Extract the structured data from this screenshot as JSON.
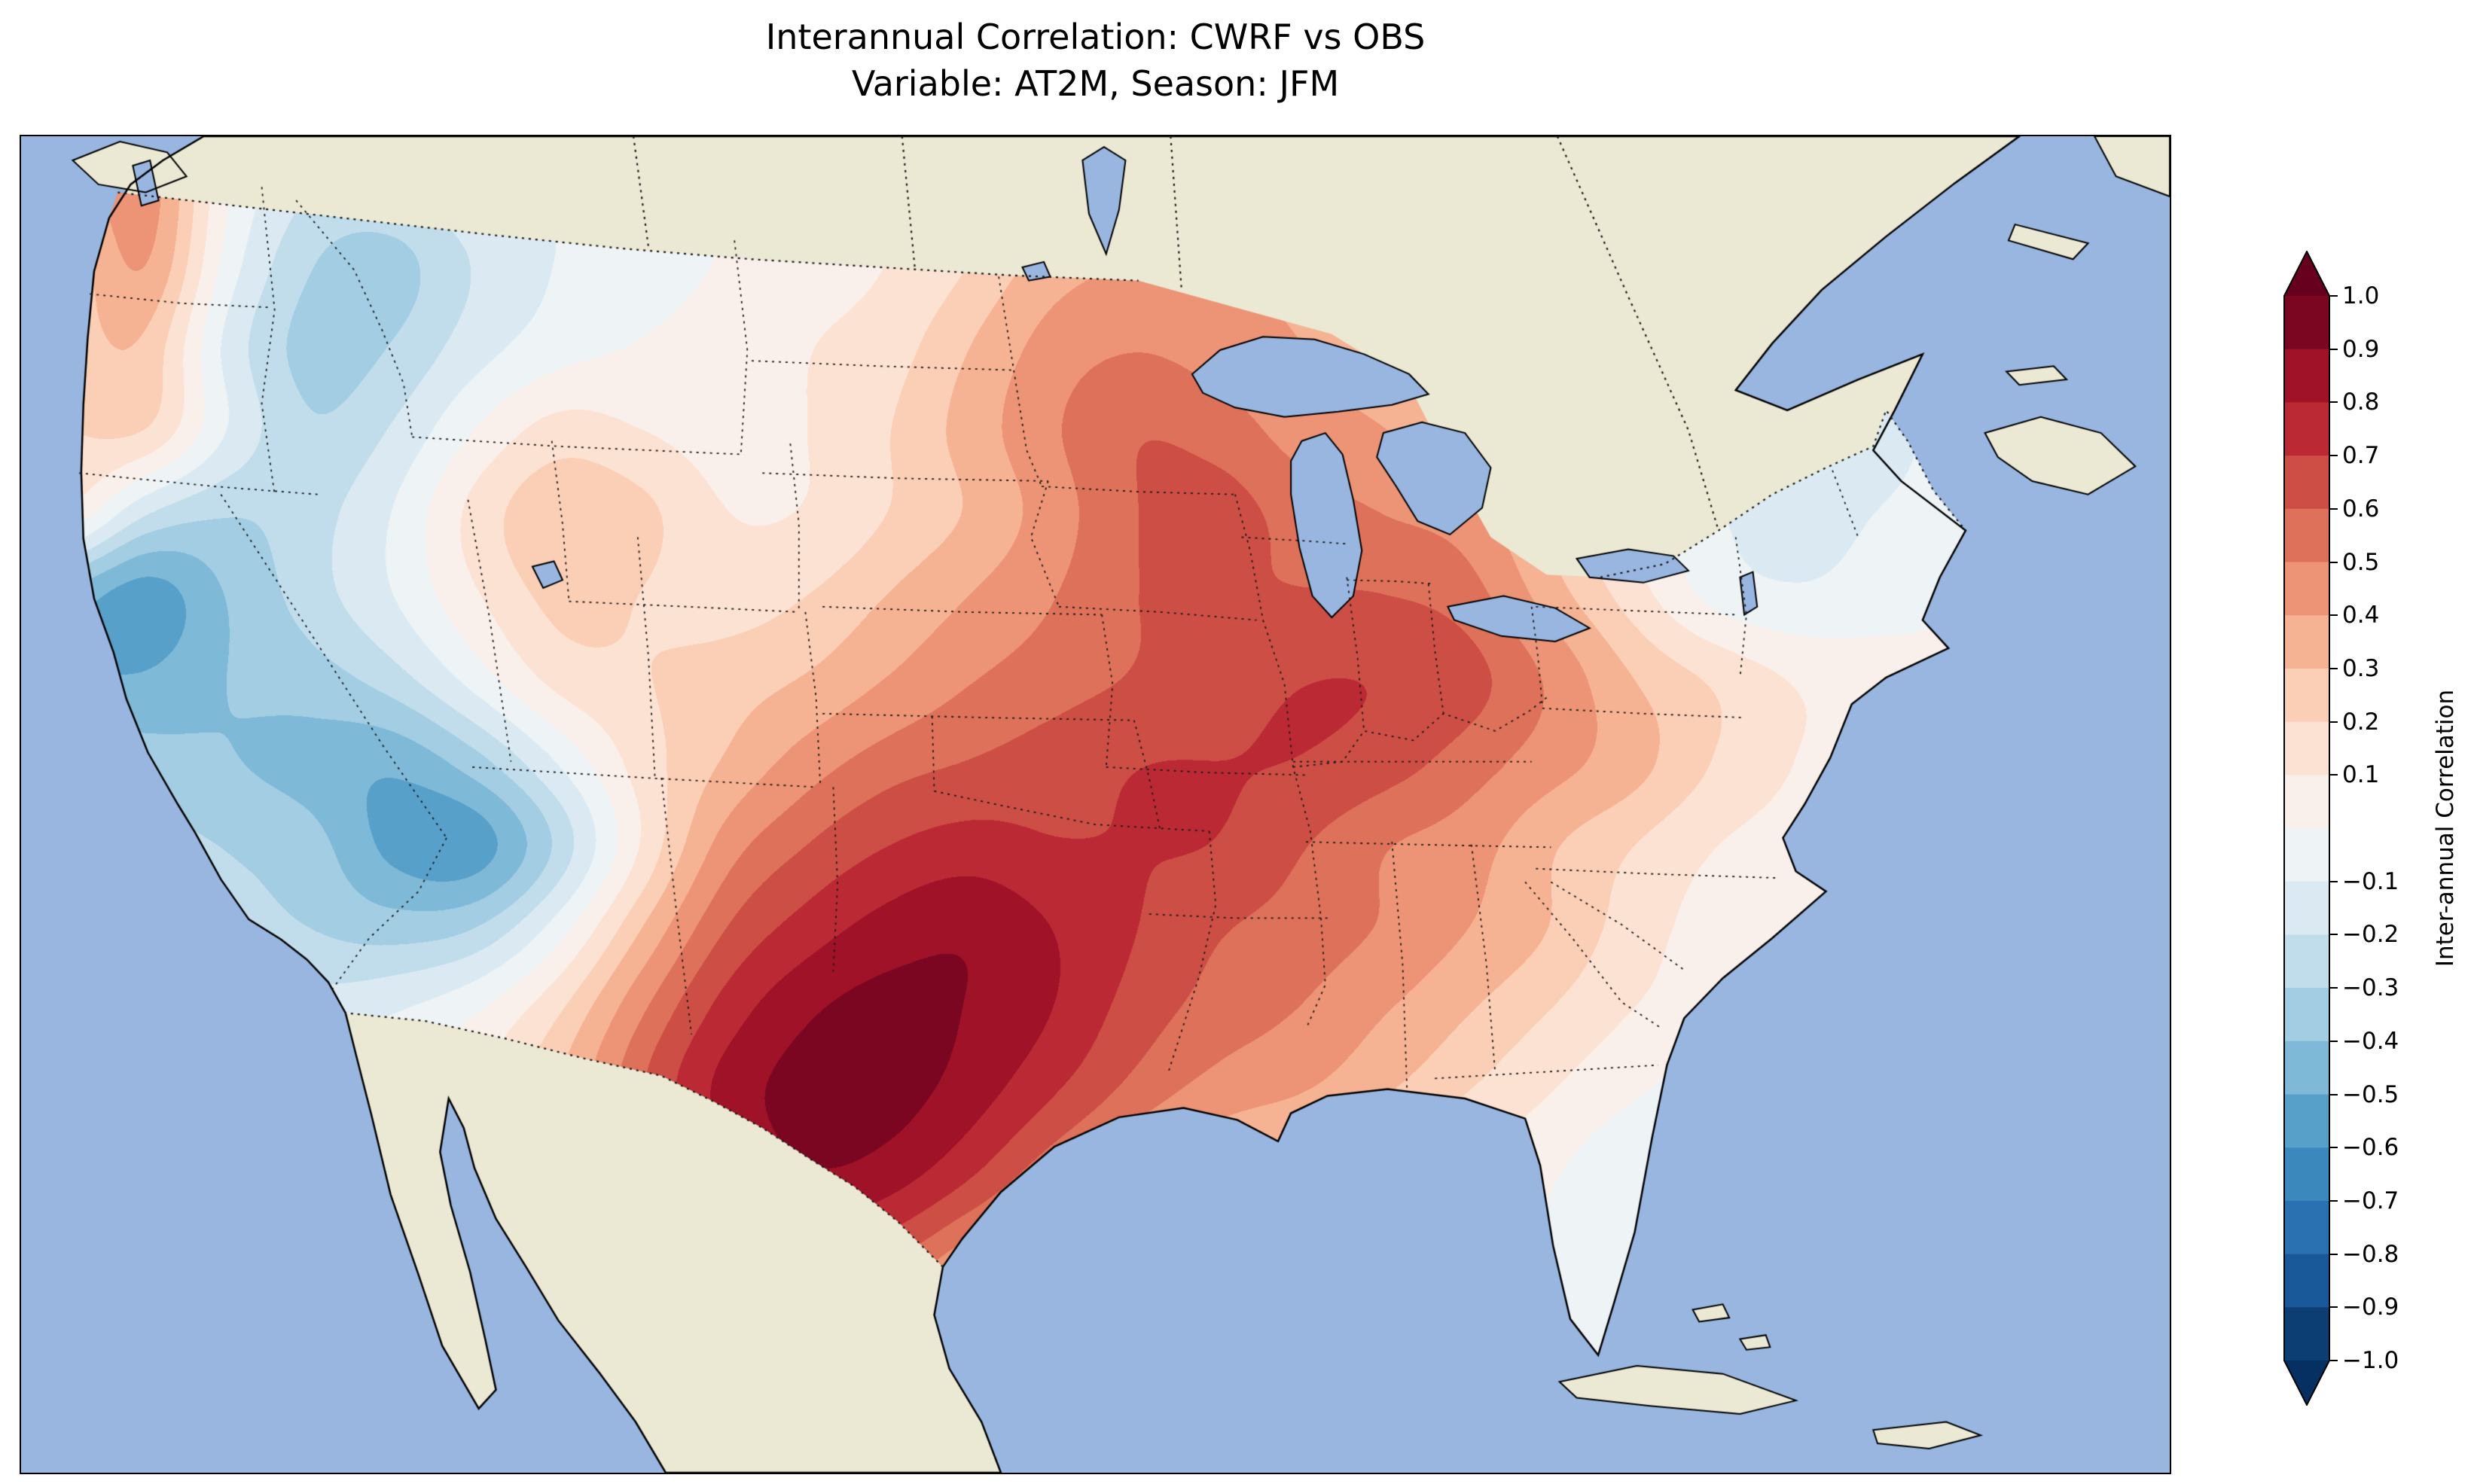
{
  "figure": {
    "title_line1": "Interannual Correlation: CWRF vs OBS",
    "title_line2": "Variable: AT2M, Season: JFM"
  },
  "colorbar": {
    "label": "Inter-annual Correlation",
    "tick_labels": [
      "1.0",
      "0.9",
      "0.8",
      "0.7",
      "0.6",
      "0.5",
      "0.4",
      "0.3",
      "0.2",
      "0.1",
      "−0.1",
      "−0.2",
      "−0.3",
      "−0.4",
      "−0.5",
      "−0.6",
      "−0.7",
      "−0.8",
      "−0.9",
      "−1.0"
    ],
    "tick_values": [
      1.0,
      0.9,
      0.8,
      0.7,
      0.6,
      0.5,
      0.4,
      0.3,
      0.2,
      0.1,
      -0.1,
      -0.2,
      -0.3,
      -0.4,
      -0.5,
      -0.6,
      -0.7,
      -0.8,
      -0.9,
      -1.0
    ],
    "vmin": -1.0,
    "vmax": 1.0,
    "step": 0.1,
    "over_color": "#67001f",
    "under_color": "#053061"
  },
  "colors": {
    "background": "#ffffff",
    "ocean": "#98b6e0",
    "lake": "#98b6e0",
    "land": "#ebe9d4",
    "coastline": "#000000",
    "state_border": "#1a1a1a",
    "colormap_rdbu_anchors": [
      "#053061",
      "#2166ac",
      "#4393c3",
      "#92c5de",
      "#d1e5f0",
      "#f7f7f7",
      "#fddbc7",
      "#f4a582",
      "#d6604d",
      "#b2182b",
      "#67001f"
    ]
  },
  "chart_data": {
    "type": "heatmap",
    "title": "Interannual Correlation: CWRF vs OBS",
    "subtitle": "Variable: AT2M, Season: JFM",
    "variable": "AT2M",
    "season": "JFM",
    "series_compared": [
      "CWRF",
      "OBS"
    ],
    "value_name": "Inter-annual Correlation",
    "value_range": [
      -1.0,
      1.0
    ],
    "contour_interval": 0.1,
    "legend_position": "right-colorbar",
    "grid": {
      "note": "correlation field sampled on a 26x16 grid in map-axes fraction coordinates (x rightward, y downward); field is masked to the CONUS region",
      "nx": 26,
      "ny": 16,
      "x0": 0.0,
      "x1": 1.0,
      "y0": 0.0,
      "y1": 1.0,
      "values": [
        [
          0.3,
          0.5,
          0.0,
          -0.2,
          -0.2,
          -0.1,
          -0.1,
          0,
          0,
          0.05,
          0.1,
          0.15,
          0.2,
          0.25,
          0.3,
          0.25,
          0.2,
          0.1,
          0,
          -0.1,
          -0.15,
          -0.15,
          -0.1,
          -0.05,
          0,
          0
        ],
        [
          0.2,
          0.45,
          -0.05,
          -0.3,
          -0.35,
          -0.2,
          -0.1,
          -0.05,
          0,
          0.05,
          0.1,
          0.2,
          0.35,
          0.4,
          0.4,
          0.35,
          0.25,
          0.15,
          0,
          -0.1,
          -0.15,
          -0.2,
          -0.1,
          -0.05,
          0,
          0
        ],
        [
          0.25,
          0.3,
          -0.15,
          -0.35,
          -0.3,
          -0.15,
          -0.05,
          0,
          0.05,
          0.1,
          0.15,
          0.3,
          0.45,
          0.5,
          0.45,
          0.4,
          0.3,
          0.2,
          0.05,
          -0.1,
          -0.2,
          -0.25,
          -0.15,
          -0.1,
          0,
          0
        ],
        [
          0.2,
          0.25,
          -0.1,
          -0.3,
          -0.2,
          0,
          0.15,
          0.1,
          0.05,
          0.1,
          0.2,
          0.35,
          0.5,
          0.6,
          0.55,
          0.45,
          0.4,
          0.3,
          0.1,
          -0.05,
          -0.15,
          -0.2,
          -0.15,
          -0.05,
          0,
          0
        ],
        [
          0.15,
          -0.2,
          -0.3,
          -0.25,
          -0.1,
          0.15,
          0.3,
          0.25,
          0.1,
          0.1,
          0.2,
          0.3,
          0.45,
          0.6,
          0.65,
          0.55,
          0.5,
          0.45,
          0.25,
          0.05,
          -0.1,
          -0.15,
          -0.1,
          -0.05,
          0,
          0
        ],
        [
          -0.45,
          -0.6,
          -0.4,
          -0.25,
          -0.1,
          0.1,
          0.25,
          0.2,
          0.15,
          0.2,
          0.3,
          0.4,
          0.5,
          0.6,
          0.6,
          0.6,
          0.6,
          0.55,
          0.35,
          0.15,
          -0.05,
          -0.1,
          -0.05,
          0,
          0,
          0
        ],
        [
          -0.5,
          -0.5,
          -0.4,
          -0.35,
          -0.25,
          -0.05,
          0.15,
          0.2,
          0.25,
          0.3,
          0.4,
          0.5,
          0.55,
          0.6,
          0.65,
          0.7,
          0.7,
          0.65,
          0.5,
          0.3,
          0.2,
          0.1,
          0.05,
          0,
          0,
          0
        ],
        [
          -0.3,
          -0.35,
          -0.4,
          -0.45,
          -0.5,
          -0.35,
          -0.1,
          0.15,
          0.3,
          0.45,
          0.55,
          0.6,
          0.65,
          0.7,
          0.7,
          0.7,
          0.65,
          0.55,
          0.45,
          0.35,
          0.2,
          0.1,
          0.05,
          0,
          0,
          0
        ],
        [
          -0.2,
          -0.25,
          -0.3,
          -0.35,
          -0.55,
          -0.6,
          -0.3,
          0.1,
          0.45,
          0.6,
          0.7,
          0.75,
          0.7,
          0.7,
          0.7,
          0.6,
          0.5,
          0.45,
          0.3,
          0.2,
          0.1,
          0.05,
          0,
          0,
          0,
          0
        ],
        [
          -0.1,
          -0.15,
          -0.25,
          -0.3,
          -0.35,
          -0.3,
          -0.05,
          0.3,
          0.6,
          0.75,
          0.85,
          0.9,
          0.8,
          0.7,
          0.6,
          0.55,
          0.5,
          0.4,
          0.3,
          0.15,
          0.05,
          0,
          0,
          0,
          0,
          0
        ],
        [
          0,
          0,
          -0.1,
          -0.15,
          -0.1,
          0,
          0.2,
          0.5,
          0.75,
          0.9,
          0.95,
          0.9,
          0.8,
          0.65,
          0.55,
          0.5,
          0.4,
          0.3,
          0.2,
          0.1,
          0.05,
          0,
          0,
          0,
          0,
          0
        ],
        [
          0,
          0,
          0,
          0,
          0,
          0.1,
          0.3,
          0.6,
          0.85,
          0.95,
          0.95,
          0.85,
          0.7,
          0.55,
          0.45,
          0.4,
          0.3,
          0.2,
          0.1,
          0,
          -0.05,
          0,
          0,
          0,
          0,
          0
        ],
        [
          0,
          0,
          0,
          0,
          0,
          0.05,
          0.2,
          0.45,
          0.75,
          0.9,
          0.85,
          0.7,
          0.5,
          0.35,
          0.25,
          0.15,
          0.1,
          0.05,
          0,
          -0.1,
          -0.1,
          0,
          0,
          0,
          0,
          0
        ],
        [
          0,
          0,
          0,
          0,
          0,
          0,
          0.1,
          0.3,
          0.55,
          0.7,
          0.6,
          0.4,
          0.25,
          0.15,
          0.1,
          0.05,
          0,
          0,
          0,
          -0.05,
          -0.1,
          0,
          0,
          0,
          0,
          0
        ],
        [
          0,
          0,
          0,
          0,
          0,
          0,
          0,
          0.1,
          0.3,
          0.4,
          0.3,
          0.2,
          0.1,
          0,
          0,
          0,
          0,
          0,
          0,
          -0.05,
          -0.05,
          0,
          0,
          0,
          0,
          0
        ],
        [
          0,
          0,
          0,
          0,
          0,
          0,
          0,
          0,
          0,
          0,
          0,
          0,
          0,
          0,
          0,
          0,
          0,
          0,
          0,
          0,
          0,
          0,
          0,
          0,
          0,
          0
        ]
      ]
    }
  }
}
